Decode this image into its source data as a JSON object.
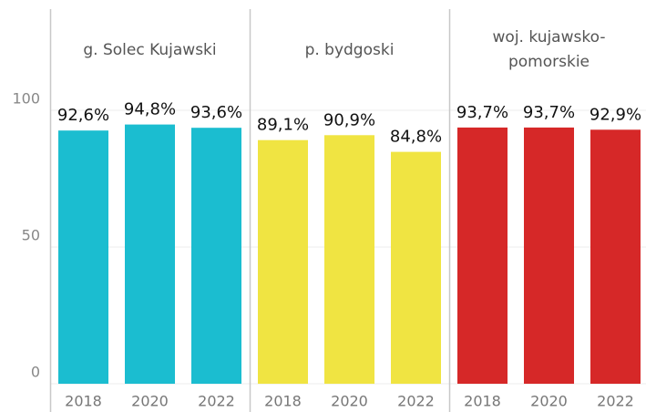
{
  "chart_data": {
    "type": "bar",
    "ylim": [
      0,
      105
    ],
    "yticks": [
      0,
      50,
      100
    ],
    "grid": true,
    "panels": [
      {
        "title": "g. Solec Kujawski",
        "color": "#1bbdd0",
        "categories": [
          "2018",
          "2020",
          "2022"
        ],
        "values": [
          92.6,
          94.8,
          93.6
        ],
        "value_labels": [
          "92,6%",
          "94,8%",
          "93,6%"
        ]
      },
      {
        "title": "p. bydgoski",
        "color": "#f0e442",
        "categories": [
          "2018",
          "2020",
          "2022"
        ],
        "values": [
          89.1,
          90.9,
          84.8
        ],
        "value_labels": [
          "89,1%",
          "90,9%",
          "84,8%"
        ]
      },
      {
        "title": "woj. kujawsko-pomorskie",
        "color": "#d62828",
        "categories": [
          "2018",
          "2020",
          "2022"
        ],
        "values": [
          93.7,
          93.7,
          92.9
        ],
        "value_labels": [
          "93,7%",
          "93,7%",
          "92,9%"
        ]
      }
    ]
  }
}
